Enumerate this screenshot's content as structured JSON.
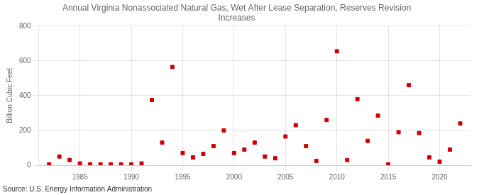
{
  "chart_data": {
    "type": "scatter",
    "title": "Annual Virginia Nonassociated Natural Gas, Wet After Lease Separation, Reserves Revision\nIncreases",
    "ylabel": "Billion Cubic Feet",
    "annotations": [
      "Source: U.S. Energy Information Administration"
    ],
    "x": [
      1982,
      1983,
      1984,
      1985,
      1986,
      1987,
      1988,
      1989,
      1990,
      1991,
      1992,
      1993,
      1994,
      1995,
      1996,
      1997,
      1998,
      1999,
      2000,
      2001,
      2002,
      2003,
      2004,
      2005,
      2006,
      2007,
      2008,
      2009,
      2010,
      2011,
      2012,
      2013,
      2014,
      2015,
      2016,
      2017,
      2018,
      2019,
      2020,
      2021,
      2022
    ],
    "values": [
      5,
      50,
      30,
      10,
      5,
      5,
      5,
      5,
      5,
      10,
      375,
      130,
      565,
      70,
      45,
      65,
      110,
      200,
      70,
      90,
      130,
      50,
      40,
      165,
      230,
      110,
      25,
      260,
      655,
      30,
      380,
      140,
      285,
      5,
      190,
      460,
      185,
      45,
      20,
      90,
      240
    ],
    "color": "#cc0000",
    "marker": "square",
    "xlim": [
      1981,
      2023
    ],
    "xticks": [
      1985,
      1990,
      1995,
      2000,
      2005,
      2010,
      2015,
      2020
    ],
    "ylim": [
      0,
      800
    ],
    "yticks": [
      0,
      200,
      400,
      600,
      800
    ],
    "grid": true
  }
}
